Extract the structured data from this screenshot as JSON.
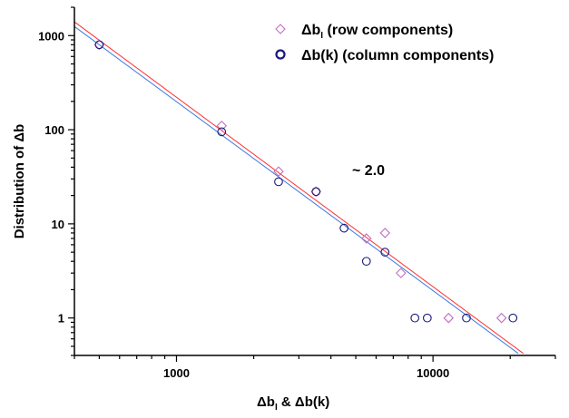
{
  "chart_data": {
    "type": "scatter",
    "xscale": "log",
    "yscale": "log",
    "xlim": [
      400,
      30000
    ],
    "ylim": [
      0.4,
      2000
    ],
    "xticks": [
      1000,
      10000
    ],
    "yticks": [
      1,
      10,
      100,
      1000
    ],
    "xtick_labels": [
      "1000",
      "10000"
    ],
    "ytick_labels": [
      "1",
      "10",
      "100",
      "1000"
    ],
    "xlabel_parts": [
      "Δb",
      "I",
      " & ",
      "Δb(k)"
    ],
    "ylabel": "Distribution of Δb",
    "annotation": "~ 2.0",
    "grid": false,
    "legend_position": "top-right",
    "series": [
      {
        "name_base": "Δb",
        "name_sub": "I",
        "name_rest": " (row components)",
        "marker": "diamond",
        "color": "#c070c0",
        "x": [
          500,
          1500,
          2500,
          3500,
          5500,
          6500,
          7500,
          11500,
          18500
        ],
        "y": [
          800,
          110,
          36,
          22,
          7,
          8,
          3,
          1,
          1
        ]
      },
      {
        "name": "Δb(k) (column components)",
        "marker": "circle",
        "color": "#1a1a7a",
        "x": [
          500,
          1500,
          2500,
          3500,
          4500,
          5500,
          6500,
          8500,
          9500,
          13500,
          20500
        ],
        "y": [
          800,
          95,
          28,
          22,
          9,
          4,
          5,
          1,
          1,
          1,
          1
        ]
      }
    ],
    "fits": [
      {
        "color": "#ff3030",
        "x": [
          400,
          22500
        ],
        "y": [
          1400,
          0.42
        ]
      },
      {
        "color": "#3d78e0",
        "x": [
          400,
          21500
        ],
        "y": [
          1250,
          0.42
        ]
      }
    ]
  }
}
